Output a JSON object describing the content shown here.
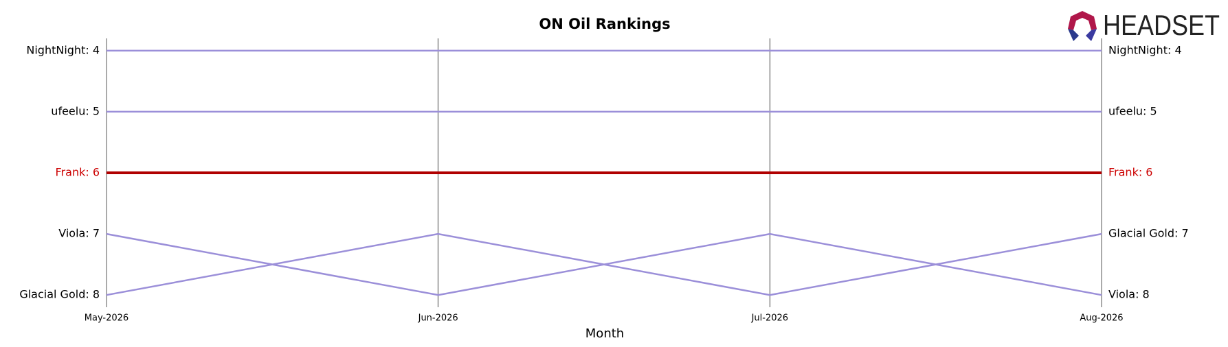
{
  "chart_data": {
    "type": "bump",
    "title": "ON Oil Rankings",
    "x_label": "Month",
    "logo": "HEADSET",
    "categories": [
      "May-2026",
      "Jun-2026",
      "Jul-2026",
      "Aug-2026"
    ],
    "ylim": [
      8.2,
      3.8
    ],
    "series": [
      {
        "name": "NightNight",
        "color": "#9b8fd9",
        "label_color": "#000000",
        "values": [
          4,
          4,
          4,
          4
        ],
        "start_label": "NightNight: 4",
        "end_label": "NightNight: 4"
      },
      {
        "name": "ufeelu",
        "color": "#9b8fd9",
        "label_color": "#000000",
        "values": [
          5,
          5,
          5,
          5
        ],
        "start_label": "ufeelu: 5",
        "end_label": "ufeelu: 5"
      },
      {
        "name": "Frank",
        "color": "#b00000",
        "label_color": "#cc0000",
        "values": [
          6,
          6,
          6,
          6
        ],
        "start_label": "Frank: 6",
        "end_label": "Frank: 6"
      },
      {
        "name": "Viola",
        "color": "#9b8fd9",
        "label_color": "#000000",
        "values": [
          7,
          8,
          7,
          8
        ],
        "start_label": "Viola: 7",
        "end_label": "Viola: 8"
      },
      {
        "name": "Glacial Gold",
        "color": "#9b8fd9",
        "label_color": "#000000",
        "values": [
          8,
          7,
          8,
          7
        ],
        "start_label": "Glacial Gold: 8",
        "end_label": "Glacial Gold: 7"
      }
    ]
  }
}
